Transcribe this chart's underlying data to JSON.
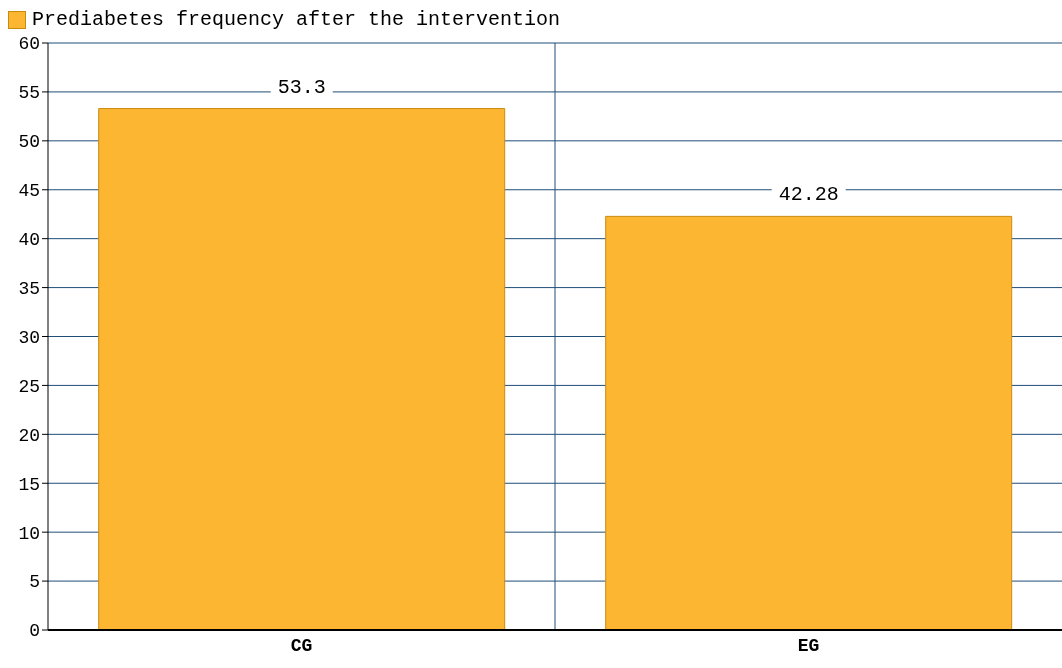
{
  "chart_data": {
    "type": "bar",
    "categories": [
      "CG",
      "EG"
    ],
    "series": [
      {
        "name": "Prediabetes frequency after the intervention",
        "color": "#fdb632",
        "values": [
          53.3,
          42.28
        ]
      }
    ],
    "ylim": [
      0,
      60
    ],
    "yticks": [
      0,
      5,
      10,
      15,
      20,
      25,
      30,
      35,
      40,
      45,
      50,
      55,
      60
    ],
    "grid": true,
    "legend": "top left",
    "data_labels": true
  }
}
